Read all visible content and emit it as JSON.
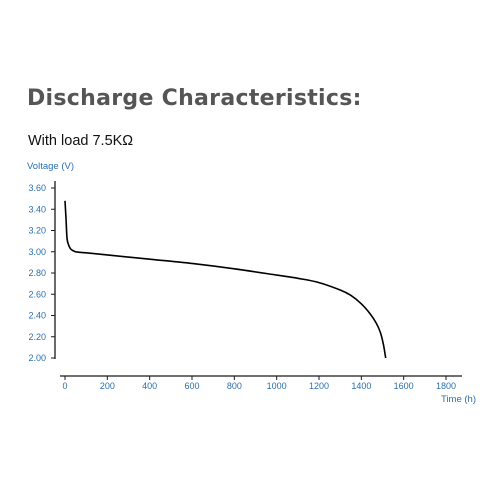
{
  "heading": "Discharge Characteristics:",
  "subheading": "With load 7.5KΩ",
  "colors": {
    "heading": "#555555",
    "axis_text": "#2a6fb0",
    "axis_line": "#1a1a1a",
    "curve": "#000000"
  },
  "chart_data": {
    "type": "line",
    "title": "",
    "xlabel": "Time (h)",
    "ylabel": "Voltage (V)",
    "xlim": [
      0,
      1800
    ],
    "ylim": [
      2.0,
      3.6
    ],
    "xticks": [
      "0",
      "200",
      "400",
      "600",
      "800",
      "1000",
      "1200",
      "1400",
      "1600",
      "1800"
    ],
    "yticks": [
      "3.60",
      "3.40",
      "3.20",
      "3.00",
      "2.80",
      "2.60",
      "2.40",
      "2.20",
      "2.00"
    ],
    "grid": false,
    "series": [
      {
        "name": "",
        "x": [
          0,
          5,
          10,
          20,
          30,
          50,
          100,
          200,
          400,
          600,
          800,
          1000,
          1100,
          1200,
          1300,
          1350,
          1400,
          1440,
          1470,
          1490,
          1505,
          1515
        ],
        "y": [
          3.48,
          3.3,
          3.12,
          3.05,
          3.02,
          3.0,
          2.99,
          2.97,
          2.93,
          2.89,
          2.84,
          2.78,
          2.75,
          2.71,
          2.64,
          2.59,
          2.51,
          2.42,
          2.33,
          2.24,
          2.12,
          2.0
        ]
      }
    ]
  }
}
